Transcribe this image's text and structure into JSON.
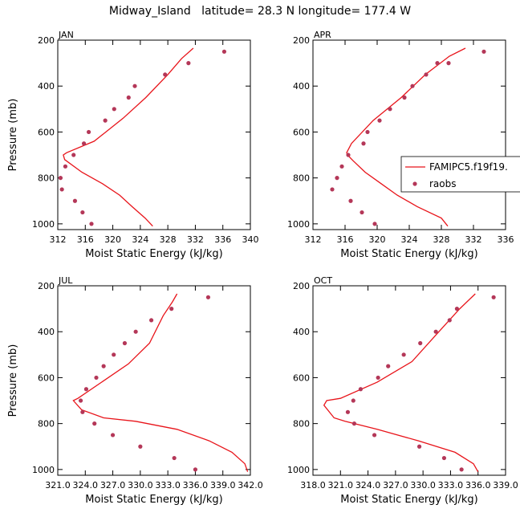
{
  "title": "Midway_Island   latitude= 28.3 N longitude= 177.4 W",
  "colors": {
    "model": "#e8141a",
    "obs": "#b43758",
    "axis": "#000000"
  },
  "legend": {
    "model": "FAMIPC5.f19f19.",
    "obs": "raobs"
  },
  "chart_data": [
    {
      "type": "line",
      "panel": "JAN",
      "xlabel": "Moist Static Energy (kJ/kg)",
      "ylabel": "Pressure (mb)",
      "xlim": [
        312,
        340
      ],
      "ylim": [
        1025,
        200
      ],
      "xticks": [
        "312",
        "316",
        "320",
        "324",
        "328",
        "332",
        "336",
        "340"
      ],
      "xtick_values": [
        312,
        316,
        320,
        324,
        328,
        332,
        336,
        340
      ],
      "yticks": [
        200,
        400,
        600,
        800,
        1000
      ],
      "series": [
        {
          "name": "FAMIPC5.f19f19.",
          "kind": "line",
          "x": [
            325.8,
            324.7,
            322.8,
            321.0,
            318.5,
            315.5,
            313.0,
            312.8,
            313.3,
            317.3,
            321.5,
            324.8,
            328.0,
            330.0,
            331.7
          ],
          "y": [
            1010,
            975,
            925,
            875,
            825,
            775,
            720,
            700,
            690,
            640,
            540,
            450,
            350,
            280,
            235
          ]
        },
        {
          "name": "raobs",
          "kind": "scatter",
          "x": [
            316.9,
            315.6,
            314.5,
            312.6,
            312.4,
            313.1,
            314.3,
            315.8,
            316.5,
            318.9,
            320.2,
            322.3,
            323.2,
            327.6,
            331.0,
            336.2
          ],
          "y": [
            1000,
            950,
            900,
            850,
            800,
            750,
            700,
            650,
            600,
            550,
            500,
            450,
            400,
            350,
            300,
            250
          ]
        }
      ]
    },
    {
      "type": "line",
      "panel": "APR",
      "xlabel": "Moist Static Energy (kJ/kg)",
      "ylabel": "",
      "xlim": [
        312,
        336
      ],
      "ylim": [
        1025,
        200
      ],
      "xticks": [
        "312",
        "316",
        "320",
        "324",
        "328",
        "332",
        "336"
      ],
      "xtick_values": [
        312,
        316,
        320,
        324,
        328,
        332,
        336
      ],
      "yticks": [
        200,
        400,
        600,
        800,
        1000
      ],
      "series": [
        {
          "name": "FAMIPC5.f19f19.",
          "kind": "line",
          "x": [
            328.8,
            328.0,
            325.0,
            322.5,
            320.5,
            318.5,
            317.0,
            316.3,
            316.2,
            316.8,
            319.5,
            323.0,
            326.0,
            329.0,
            331.0
          ],
          "y": [
            1010,
            975,
            925,
            875,
            825,
            775,
            725,
            700,
            690,
            650,
            550,
            450,
            350,
            270,
            235
          ]
        },
        {
          "name": "raobs",
          "kind": "scatter",
          "x": [
            319.7,
            318.1,
            316.7,
            314.4,
            315.0,
            315.6,
            316.4,
            318.3,
            318.8,
            320.3,
            321.6,
            323.4,
            324.4,
            326.1,
            327.5,
            328.9,
            333.3
          ],
          "y": [
            1000,
            950,
            900,
            850,
            800,
            750,
            700,
            650,
            600,
            550,
            500,
            450,
            400,
            350,
            300,
            300,
            250
          ]
        }
      ]
    },
    {
      "type": "line",
      "panel": "JUL",
      "xlabel": "Moist Static Energy (kJ/kg)",
      "ylabel": "Pressure (mb)",
      "xlim": [
        321,
        342
      ],
      "ylim": [
        1025,
        200
      ],
      "xticks": [
        "321.0",
        "324.0",
        "327.0",
        "330.0",
        "333.0",
        "336.0",
        "339.0",
        "342.0"
      ],
      "xtick_values": [
        321,
        324,
        327,
        330,
        333,
        336,
        339,
        342
      ],
      "yticks": [
        200,
        400,
        600,
        800,
        1000
      ],
      "series": [
        {
          "name": "FAMIPC5.f19f19.",
          "kind": "line",
          "x": [
            341.7,
            341.4,
            340.0,
            337.5,
            334.0,
            329.5,
            326.0,
            323.6,
            322.7,
            323.2,
            328.7,
            331.0,
            332.5,
            333.5,
            334.0
          ],
          "y": [
            1010,
            975,
            925,
            875,
            825,
            790,
            775,
            740,
            700,
            690,
            540,
            450,
            330,
            270,
            235
          ]
        },
        {
          "name": "raobs",
          "kind": "scatter",
          "x": [
            336.0,
            333.7,
            330.0,
            327.0,
            325.0,
            323.7,
            323.5,
            324.1,
            325.2,
            326.0,
            327.1,
            328.3,
            329.5,
            331.2,
            333.4,
            337.4
          ],
          "y": [
            1000,
            950,
            900,
            850,
            800,
            750,
            700,
            650,
            600,
            550,
            500,
            450,
            400,
            350,
            300,
            250
          ]
        }
      ]
    },
    {
      "type": "line",
      "panel": "OCT",
      "xlabel": "Moist Static Energy (kJ/kg)",
      "ylabel": "",
      "xlim": [
        318,
        339
      ],
      "ylim": [
        1025,
        200
      ],
      "xticks": [
        "318.0",
        "321.0",
        "324.0",
        "327.0",
        "330.0",
        "333.0",
        "336.0",
        "339.0"
      ],
      "xtick_values": [
        318,
        321,
        324,
        327,
        330,
        333,
        336,
        339
      ],
      "yticks": [
        200,
        400,
        600,
        800,
        1000
      ],
      "series": [
        {
          "name": "FAMIPC5.f19f19.",
          "kind": "line",
          "x": [
            336.0,
            335.5,
            333.5,
            329.5,
            325.0,
            321.5,
            320.3,
            319.2,
            319.5,
            321.0,
            325.0,
            328.8,
            331.5,
            334.0,
            335.7
          ],
          "y": [
            1010,
            975,
            925,
            875,
            825,
            790,
            775,
            720,
            700,
            690,
            620,
            530,
            410,
            300,
            235
          ]
        },
        {
          "name": "raobs",
          "kind": "scatter",
          "x": [
            334.2,
            332.3,
            329.6,
            324.7,
            322.5,
            321.8,
            322.4,
            323.2,
            325.1,
            326.2,
            327.9,
            329.7,
            331.4,
            332.9,
            333.7,
            337.7
          ],
          "y": [
            1000,
            950,
            900,
            850,
            800,
            750,
            700,
            650,
            600,
            550,
            500,
            450,
            400,
            350,
            300,
            250
          ]
        }
      ]
    }
  ]
}
